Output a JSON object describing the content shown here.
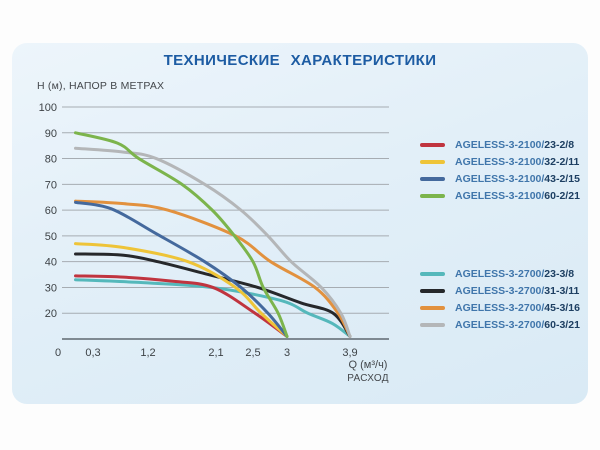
{
  "chart_data": {
    "type": "line",
    "title": "ТЕХНИЧЕСКИЕ ХАРАКТЕРИСТИКИ",
    "y_axis_label": "Н (м), НАПОР В МЕТРАХ",
    "x_axis_label_line1": "Q (м³/ч)",
    "x_axis_label_line2": "РАСХОД",
    "grid": true,
    "legend_position": "right",
    "ylim": [
      10,
      100
    ],
    "xlim": [
      0,
      3.9
    ],
    "y_ticks": [
      100,
      90,
      80,
      70,
      60,
      50,
      40,
      30,
      20
    ],
    "x_ticks": [
      {
        "label": "0",
        "value": 0
      },
      {
        "label": "0,3",
        "value": 0.3
      },
      {
        "label": "1,2",
        "value": 1.2
      },
      {
        "label": "2,1",
        "value": 2.1
      },
      {
        "label": "2,5",
        "value": 2.5
      },
      {
        "label": "3",
        "value": 3
      },
      {
        "label": "3,9",
        "value": 3.9
      }
    ],
    "groups": [
      {
        "name": "AGELESS-3-2100",
        "series": [
          {
            "label_prefix": "AGELESS-3-2100/",
            "label_suffix": "23-2/8",
            "color": "#c0343f",
            "points": [
              [
                0.15,
                34.5
              ],
              [
                0.8,
                34
              ],
              [
                1.5,
                32.5
              ],
              [
                2.06,
                30
              ],
              [
                2.53,
                20
              ],
              [
                3.0,
                11
              ]
            ]
          },
          {
            "label_prefix": "AGELESS-3-2100/",
            "label_suffix": "32-2/11",
            "color": "#eec438",
            "points": [
              [
                0.15,
                47
              ],
              [
                0.8,
                45.5
              ],
              [
                1.73,
                40
              ],
              [
                2.31,
                30
              ],
              [
                2.62,
                20
              ],
              [
                3.0,
                11
              ]
            ]
          },
          {
            "label_prefix": "AGELESS-3-2100/",
            "label_suffix": "43-2/15",
            "color": "#44699d",
            "points": [
              [
                0.15,
                63
              ],
              [
                0.6,
                60.5
              ],
              [
                1.3,
                51
              ],
              [
                1.95,
                40
              ],
              [
                2.37,
                30
              ],
              [
                2.72,
                20
              ],
              [
                3.0,
                11
              ]
            ]
          },
          {
            "label_prefix": "AGELESS-3-2100/",
            "label_suffix": "60-2/21",
            "color": "#7cb44c",
            "points": [
              [
                0.15,
                90
              ],
              [
                0.7,
                86
              ],
              [
                1.05,
                80
              ],
              [
                1.65,
                70
              ],
              [
                2.05,
                60
              ],
              [
                2.3,
                50
              ],
              [
                2.5,
                40
              ],
              [
                2.65,
                30
              ],
              [
                2.87,
                20
              ],
              [
                3.0,
                11
              ]
            ]
          }
        ]
      },
      {
        "name": "AGELESS-3-2700",
        "series": [
          {
            "label_prefix": "AGELESS-3-2700/",
            "label_suffix": "23-3/8",
            "color": "#55b8bb",
            "points": [
              [
                0.15,
                33
              ],
              [
                1.0,
                32
              ],
              [
                2.05,
                30
              ],
              [
                2.9,
                25
              ],
              [
                3.3,
                20
              ],
              [
                3.65,
                16
              ],
              [
                3.9,
                11
              ]
            ]
          },
          {
            "label_prefix": "AGELESS-3-2700/",
            "label_suffix": "31-3/11",
            "color": "#26282b",
            "points": [
              [
                0.15,
                43
              ],
              [
                0.8,
                42.5
              ],
              [
                1.33,
                40
              ],
              [
                2.0,
                35
              ],
              [
                2.57,
                30
              ],
              [
                3.2,
                24
              ],
              [
                3.66,
                20
              ],
              [
                3.9,
                11
              ]
            ]
          },
          {
            "label_prefix": "AGELESS-3-2700/",
            "label_suffix": "45-3/16",
            "color": "#e2913e",
            "points": [
              [
                0.15,
                63.5
              ],
              [
                0.8,
                62.5
              ],
              [
                1.46,
                60
              ],
              [
                2.31,
                50
              ],
              [
                2.76,
                40
              ],
              [
                3.4,
                30
              ],
              [
                3.73,
                20
              ],
              [
                3.9,
                11
              ]
            ]
          },
          {
            "label_prefix": "AGELESS-3-2700/",
            "label_suffix": "60-3/21",
            "color": "#b4b6b8",
            "points": [
              [
                0.15,
                84
              ],
              [
                0.8,
                82.5
              ],
              [
                1.31,
                80
              ],
              [
                1.95,
                70
              ],
              [
                2.37,
                60
              ],
              [
                2.72,
                50
              ],
              [
                3.06,
                40
              ],
              [
                3.49,
                30
              ],
              [
                3.77,
                20
              ],
              [
                3.9,
                11
              ]
            ]
          }
        ]
      }
    ]
  }
}
